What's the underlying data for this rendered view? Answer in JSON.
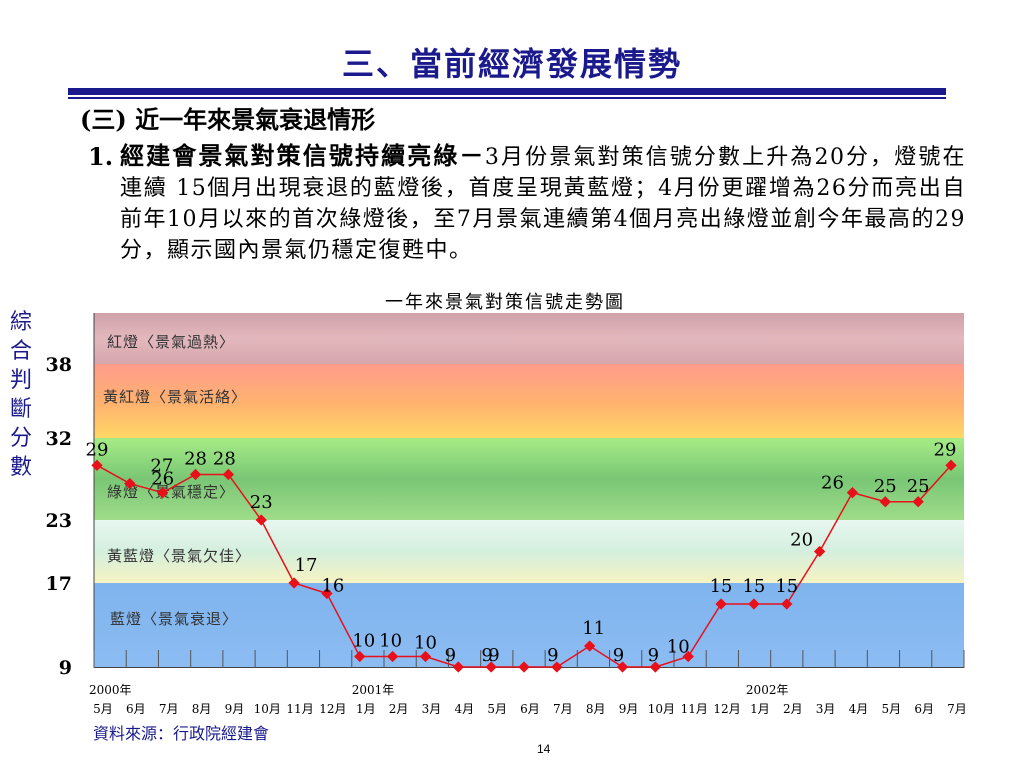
{
  "slide": {
    "title": "三、當前經濟發展情勢",
    "section": "(三) 近一年來景氣衰退情形",
    "item_number": "1.",
    "item_heading": "經建會景氣對策信號持續亮綠－",
    "item_text": "3月份景氣對策信號分數上升為20分，燈號在連續 15個月出現衰退的藍燈後，首度呈現黃藍燈；4月份更躍增為26分而亮出自前年10月以來的首次綠燈後，至7月景氣連續第4個月亮出綠燈並創今年最高的29分，顯示國內景氣仍穩定復甦中。",
    "source": "資料來源：行政院經建會",
    "page_number": "14"
  },
  "chart_data": {
    "type": "line",
    "title": "一年來景氣對策信號走勢圖",
    "ylabel": "綜合判斷分數",
    "xlabel": "",
    "ylim": [
      9,
      45
    ],
    "y_ticks": [
      9,
      17,
      23,
      32,
      38
    ],
    "bands": [
      {
        "label": "紅燈〈景氣過熱〉",
        "from": 38,
        "to": 45,
        "color": "#d9a3a8"
      },
      {
        "label": "黃紅燈〈景氣活絡〉",
        "from": 32,
        "to": 38,
        "color": "#ff9f6f"
      },
      {
        "label": "綠燈〈景氣穩定〉",
        "from": 23,
        "to": 32,
        "color": "#86d67c"
      },
      {
        "label": "黃藍燈〈景氣欠佳〉",
        "from": 17,
        "to": 23,
        "color": "#dcf0d8"
      },
      {
        "label": "藍燈〈景氣衰退〉",
        "from": 9,
        "to": 17,
        "color": "#7fb2ec"
      }
    ],
    "year_labels": [
      {
        "label": "2000年",
        "index": 0
      },
      {
        "label": "2001年",
        "index": 8
      },
      {
        "label": "2002年",
        "index": 20
      }
    ],
    "categories": [
      "5月",
      "6月",
      "7月",
      "8月",
      "9月",
      "10月",
      "11月",
      "12月",
      "1月",
      "2月",
      "3月",
      "4月",
      "5月",
      "6月",
      "7月",
      "8月",
      "9月",
      "10月",
      "11月",
      "12月",
      "1月",
      "2月",
      "3月",
      "4月",
      "5月",
      "6月",
      "7月"
    ],
    "series": [
      {
        "values": [
          29,
          27,
          26,
          28,
          28,
          23,
          17,
          16,
          10,
          10,
          10,
          9,
          9,
          9,
          9,
          11,
          9,
          9,
          10,
          15,
          15,
          15,
          20,
          26,
          25,
          25,
          29
        ],
        "color": "#e8101a"
      }
    ],
    "data_labels": [
      "29",
      "27",
      "26",
      "28",
      "28",
      "23",
      "17",
      "16",
      "10",
      "10",
      "10",
      "9",
      "9",
      "9",
      "9",
      "11",
      "9",
      "9",
      "10",
      "15",
      "15",
      "15",
      "20",
      "26",
      "25",
      "25",
      "29"
    ],
    "grid": false,
    "legend": "none"
  }
}
